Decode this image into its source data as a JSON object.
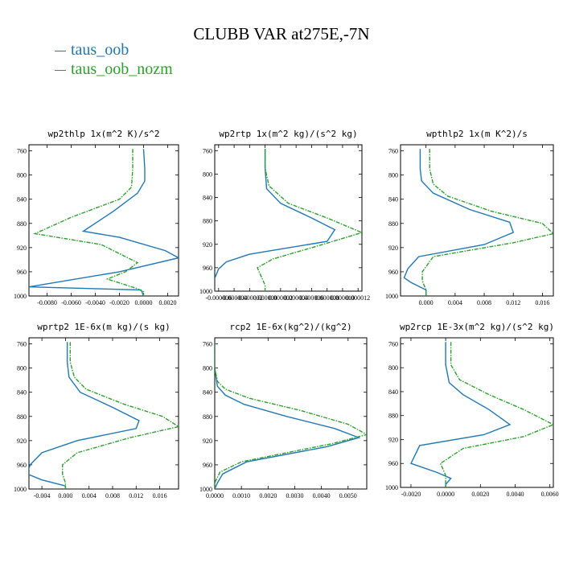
{
  "title": "CLUBB VAR at275E,-7N",
  "legend": [
    {
      "label": "taus_oob",
      "color": "#1f77b4"
    },
    {
      "label": "taus_oob_nozm",
      "color": "#2ca02c"
    }
  ],
  "chart_data": [
    {
      "type": "line",
      "title": "wp2thlp  1x(m^2 K)/s^2",
      "ylim": [
        1000,
        750
      ],
      "yticks": [
        760,
        800,
        840,
        880,
        920,
        960,
        1000
      ],
      "xlim": [
        -0.0095,
        0.0029
      ],
      "xticks": [
        -0.008,
        -0.006,
        -0.004,
        -0.002,
        0.0,
        0.002
      ],
      "xtick_labels": [
        "-0.0080",
        "-0.0060",
        "-0.0040",
        "-0.0020",
        "0.0000",
        "0.0020"
      ],
      "series": [
        {
          "name": "taus_oob",
          "color": "#1f77b4",
          "dashed": false,
          "x": [
            0.0,
            0.0001,
            0.0001,
            -0.0005,
            -0.0025,
            -0.005,
            -0.002,
            0.0018,
            0.0029,
            -0.002,
            -0.0095,
            -0.0002,
            0.0
          ],
          "y": [
            757,
            790,
            810,
            830,
            860,
            893,
            903,
            925,
            937,
            960,
            985,
            990,
            1000
          ]
        },
        {
          "name": "taus_oob_nozm",
          "color": "#2ca02c",
          "dashed": true,
          "x": [
            -0.0009,
            -0.0009,
            -0.001,
            -0.002,
            -0.006,
            -0.009,
            -0.0035,
            -0.0005,
            -0.0015,
            -0.003,
            -0.0005,
            0.0,
            0.0
          ],
          "y": [
            757,
            790,
            820,
            840,
            870,
            897,
            915,
            945,
            960,
            972,
            988,
            993,
            1000
          ]
        }
      ]
    },
    {
      "type": "line",
      "title": "wp2rtp  1x(m^2 kg)/(s^2 kg)",
      "ylim": [
        1000,
        750
      ],
      "yticks": [
        760,
        800,
        840,
        880,
        920,
        960,
        1000
      ],
      "xlim": [
        -6.5e-06,
        1.25e-05
      ],
      "xticks": [
        -6e-06,
        -4e-06,
        -2e-06,
        0.0,
        2e-06,
        4e-06,
        6e-06,
        8e-06,
        1e-05,
        1.2e-05
      ],
      "xtick_labels": [
        "-0.000006",
        "-0.000004",
        "-0.000002",
        "0.000000",
        "0.000002",
        "0.000004",
        "0.000006",
        "0.000008",
        "0.000010",
        "0.000012"
      ],
      "series": [
        {
          "name": "taus_oob",
          "color": "#1f77b4",
          "dashed": false,
          "x": [
            0.0,
            0.0,
            2e-07,
            2e-06,
            6e-06,
            9e-06,
            8e-06,
            -2e-06,
            -5e-06,
            -6e-06,
            -6.5e-06,
            -7e-06,
            -6.5e-06
          ],
          "y": [
            757,
            790,
            825,
            850,
            875,
            895,
            915,
            937,
            950,
            962,
            978,
            985,
            1000
          ]
        },
        {
          "name": "taus_oob_nozm",
          "color": "#2ca02c",
          "dashed": true,
          "x": [
            0.0,
            0.0,
            5e-07,
            3e-06,
            8e-06,
            1.25e-05,
            7e-06,
            1e-06,
            -1e-06,
            -5e-07,
            0.0,
            0.0
          ],
          "y": [
            757,
            790,
            820,
            850,
            875,
            900,
            922,
            945,
            960,
            975,
            990,
            1000
          ]
        }
      ]
    },
    {
      "type": "line",
      "title": "wpthlp2  1x(m K^2)/s",
      "ylim": [
        1000,
        750
      ],
      "yticks": [
        760,
        800,
        840,
        880,
        920,
        960,
        1000
      ],
      "xlim": [
        -0.0035,
        0.0175
      ],
      "xticks": [
        0.0,
        0.004,
        0.008,
        0.012,
        0.016
      ],
      "xtick_labels": [
        "0.000",
        "0.004",
        "0.008",
        "0.012",
        "0.016"
      ],
      "series": [
        {
          "name": "taus_oob",
          "color": "#1f77b4",
          "dashed": false,
          "x": [
            -0.0008,
            -0.0008,
            -0.0006,
            0.001,
            0.006,
            0.0115,
            0.012,
            0.008,
            -0.001,
            -0.0025,
            -0.003,
            -0.002,
            0.0,
            0.0
          ],
          "y": [
            757,
            790,
            810,
            830,
            857,
            878,
            895,
            915,
            935,
            955,
            970,
            978,
            990,
            1000
          ]
        },
        {
          "name": "taus_oob_nozm",
          "color": "#2ca02c",
          "dashed": true,
          "x": [
            0.0005,
            0.0005,
            0.001,
            0.003,
            0.009,
            0.016,
            0.0175,
            0.012,
            0.001,
            -0.0005,
            -0.0005,
            0.0,
            0.0
          ],
          "y": [
            757,
            790,
            815,
            835,
            860,
            880,
            897,
            912,
            935,
            960,
            975,
            990,
            1000
          ]
        }
      ]
    },
    {
      "type": "line",
      "title": "wprtp2  1E-6x(m kg)/(s kg)",
      "ylim": [
        1000,
        750
      ],
      "yticks": [
        760,
        800,
        840,
        880,
        920,
        960,
        1000
      ],
      "xlim": [
        -0.0062,
        0.0192
      ],
      "xticks": [
        -0.004,
        0.0,
        0.004,
        0.008,
        0.012,
        0.016
      ],
      "xtick_labels": [
        "-0.004",
        "0.000",
        "0.004",
        "0.008",
        "0.012",
        "0.016"
      ],
      "series": [
        {
          "name": "taus_oob",
          "color": "#1f77b4",
          "dashed": false,
          "x": [
            0.0003,
            0.0003,
            0.0006,
            0.0025,
            0.008,
            0.0125,
            0.012,
            0.002,
            -0.004,
            -0.006,
            -0.0065,
            -0.004,
            0.0,
            0.0
          ],
          "y": [
            757,
            790,
            815,
            840,
            865,
            887,
            900,
            920,
            940,
            960,
            975,
            985,
            995,
            1000
          ]
        },
        {
          "name": "taus_oob_nozm",
          "color": "#2ca02c",
          "dashed": true,
          "x": [
            0.0008,
            0.0008,
            0.0015,
            0.0035,
            0.01,
            0.0165,
            0.0192,
            0.011,
            0.002,
            -0.0005,
            -0.0005,
            0.0,
            0.0
          ],
          "y": [
            757,
            790,
            815,
            835,
            860,
            880,
            897,
            915,
            940,
            960,
            975,
            990,
            1000
          ]
        }
      ]
    },
    {
      "type": "line",
      "title": "rcp2  1E-6x(kg^2)/(kg^2)",
      "ylim": [
        1000,
        750
      ],
      "yticks": [
        760,
        800,
        840,
        880,
        920,
        960,
        1000
      ],
      "xlim": [
        0.0,
        0.0057
      ],
      "xticks": [
        0.0,
        0.001,
        0.002,
        0.003,
        0.004,
        0.005
      ],
      "xtick_labels": [
        "0.0000",
        "0.0010",
        "0.0020",
        "0.0030",
        "0.0040",
        "0.0050"
      ],
      "series": [
        {
          "name": "taus_oob",
          "color": "#1f77b4",
          "dashed": false,
          "x": [
            0.0,
            0.0,
            0.0001,
            0.0004,
            0.0011,
            0.0027,
            0.0045,
            0.0054,
            0.0042,
            0.0012,
            0.0003,
            0.0001,
            0.0
          ],
          "y": [
            757,
            800,
            830,
            845,
            860,
            880,
            900,
            915,
            930,
            955,
            975,
            990,
            1000
          ]
        },
        {
          "name": "taus_oob_nozm",
          "color": "#2ca02c",
          "dashed": true,
          "x": [
            0.0,
            0.0,
            0.0001,
            0.0004,
            0.0013,
            0.0032,
            0.005,
            0.0057,
            0.0044,
            0.001,
            0.0002,
            0.0,
            0.0
          ],
          "y": [
            757,
            800,
            822,
            835,
            850,
            870,
            893,
            910,
            925,
            955,
            972,
            990,
            1000
          ]
        }
      ]
    },
    {
      "type": "line",
      "title": "wp2rcp  1E-3x(m^2 kg)/(s^2 kg)",
      "ylim": [
        1000,
        750
      ],
      "yticks": [
        760,
        800,
        840,
        880,
        920,
        960,
        1000
      ],
      "xlim": [
        -0.0026,
        0.0062
      ],
      "xticks": [
        -0.002,
        0.0,
        0.002,
        0.004,
        0.006
      ],
      "xtick_labels": [
        "-0.0020",
        "0.0000",
        "0.0020",
        "0.0040",
        "0.0060"
      ],
      "series": [
        {
          "name": "taus_oob",
          "color": "#1f77b4",
          "dashed": false,
          "x": [
            0.0,
            0.0,
            0.0002,
            0.001,
            0.0025,
            0.0037,
            0.0022,
            -0.0015,
            -0.002,
            -0.0005,
            0.0003,
            0.0,
            0.0
          ],
          "y": [
            757,
            795,
            825,
            845,
            870,
            895,
            912,
            930,
            960,
            975,
            985,
            995,
            1000
          ]
        },
        {
          "name": "taus_oob_nozm",
          "color": "#2ca02c",
          "dashed": true,
          "x": [
            0.0003,
            0.0003,
            0.0008,
            0.0025,
            0.0045,
            0.0062,
            0.0045,
            0.001,
            -0.0003,
            0.0,
            0.0,
            0.0
          ],
          "y": [
            757,
            795,
            820,
            845,
            870,
            895,
            915,
            935,
            960,
            980,
            990,
            1000
          ]
        }
      ]
    }
  ]
}
